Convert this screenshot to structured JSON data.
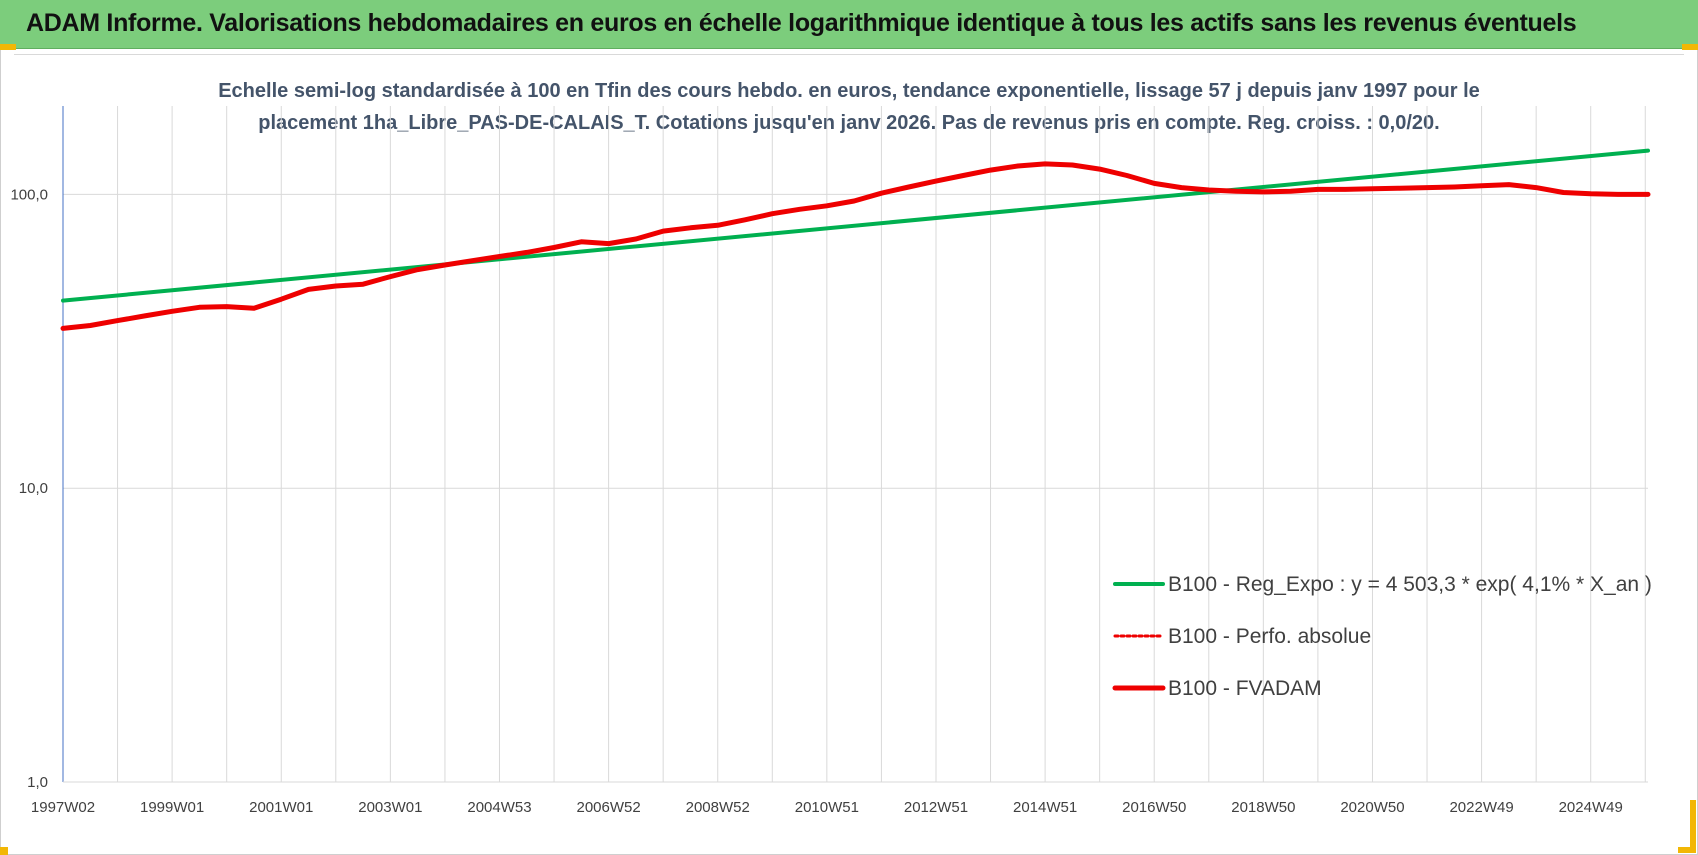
{
  "header": {
    "title": "ADAM Informe. Valorisations hebdomadaires en euros en échelle logarithmique identique à tous les actifs sans les revenus éventuels"
  },
  "colors": {
    "header_bg": "#7ccd7c",
    "accent": "#f2b705",
    "trend": "#00b050",
    "fvadam": "#ee0000",
    "subtitle": "#44546a"
  },
  "chart_data": {
    "type": "line",
    "subtitle_lines": [
      "Echelle semi-log standardisée à 100 en Tfin des cours hebdo. en euros, tendance exponentielle, lissage 57 j depuis janv 1997 pour le",
      "placement 1ha_Libre_PAS-DE-CALAIS_T. Cotations jusqu'en janv 2026. Pas de revenus pris en compte. Reg. croiss. : 0,0/20."
    ],
    "y_scale": "log",
    "ylim": [
      1,
      200
    ],
    "y_ticks": [
      {
        "value": 1,
        "label": "1,0"
      },
      {
        "value": 10,
        "label": "10,0"
      },
      {
        "value": 100,
        "label": "100,0"
      }
    ],
    "xlim": [
      1997.0,
      2026.05
    ],
    "x_ticks": [
      {
        "value": 1997.0,
        "label": "1997W02"
      },
      {
        "value": 1999.0,
        "label": "1999W01"
      },
      {
        "value": 2001.0,
        "label": "2001W01"
      },
      {
        "value": 2003.0,
        "label": "2003W01"
      },
      {
        "value": 2005.0,
        "label": "2004W53"
      },
      {
        "value": 2007.0,
        "label": "2006W52"
      },
      {
        "value": 2009.0,
        "label": "2008W52"
      },
      {
        "value": 2011.0,
        "label": "2010W51"
      },
      {
        "value": 2013.0,
        "label": "2012W51"
      },
      {
        "value": 2015.0,
        "label": "2014W51"
      },
      {
        "value": 2017.0,
        "label": "2016W50"
      },
      {
        "value": 2019.0,
        "label": "2018W50"
      },
      {
        "value": 2021.0,
        "label": "2020W50"
      },
      {
        "value": 2023.0,
        "label": "2022W49"
      },
      {
        "value": 2025.0,
        "label": "2024W49"
      }
    ],
    "grid": true,
    "legend_position": "right",
    "series": [
      {
        "name": "B100 - Reg_Expo : y = 4 503,3 * exp( 4,1% *  X_an )",
        "style": "solid-thin",
        "x": [
          1997.0,
          2026.05
        ],
        "y": [
          43.5,
          141.0
        ]
      },
      {
        "name": "B100 - Perfo. absolue",
        "style": "dotted",
        "x": [],
        "y": []
      },
      {
        "name": "B100 - FVADAM",
        "style": "solid-thick",
        "x": [
          1997.0,
          1997.5,
          1998.0,
          1998.5,
          1999.0,
          1999.5,
          2000.0,
          2000.5,
          2001.0,
          2001.5,
          2002.0,
          2002.5,
          2003.0,
          2003.5,
          2004.0,
          2004.5,
          2005.0,
          2005.5,
          2006.0,
          2006.5,
          2007.0,
          2007.5,
          2008.0,
          2008.5,
          2009.0,
          2009.5,
          2010.0,
          2010.5,
          2011.0,
          2011.5,
          2012.0,
          2012.5,
          2013.0,
          2013.5,
          2014.0,
          2014.5,
          2015.0,
          2015.5,
          2016.0,
          2016.5,
          2017.0,
          2017.5,
          2018.0,
          2018.5,
          2019.0,
          2019.5,
          2020.0,
          2020.5,
          2021.0,
          2021.5,
          2022.0,
          2022.5,
          2023.0,
          2023.5,
          2024.0,
          2024.5,
          2025.0,
          2025.5,
          2026.05
        ],
        "y": [
          35.0,
          35.8,
          37.2,
          38.6,
          40.0,
          41.3,
          41.5,
          41.0,
          44.0,
          47.5,
          48.8,
          49.5,
          52.5,
          55.5,
          57.5,
          59.5,
          61.5,
          63.5,
          66.0,
          69.0,
          68.0,
          70.5,
          75.0,
          77.0,
          78.5,
          82.0,
          86.0,
          89.0,
          91.5,
          95.0,
          101.0,
          106.0,
          111.0,
          116.0,
          121.0,
          125.0,
          127.0,
          126.0,
          122.0,
          116.0,
          109.0,
          105.5,
          103.5,
          102.5,
          102.0,
          102.5,
          104.0,
          104.0,
          104.5,
          105.0,
          105.5,
          106.0,
          107.0,
          108.0,
          105.5,
          101.5,
          100.5,
          100.0,
          100.0
        ]
      }
    ]
  }
}
